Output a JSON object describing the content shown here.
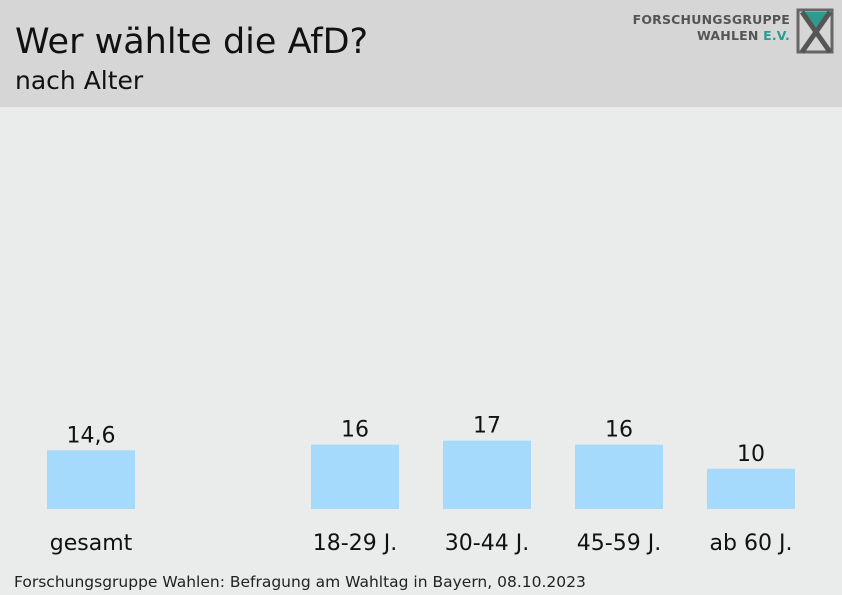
{
  "title": "Wer wählte die AfD?",
  "subtitle": "nach Alter",
  "logo": {
    "line1": "FORSCHUNGSGRUPPE",
    "line2_main": "WAHLEN",
    "line2_suffix": "E.V."
  },
  "source": "Forschungsgruppe Wahlen: Befragung am Wahltag in Bayern, 08.10.2023",
  "colors": {
    "bar": "#a6dafc",
    "header_bg": "#d6d6d6",
    "plot_bg": "#e9eceb",
    "logo_accent": "#2e9b8f"
  },
  "chart_data": {
    "type": "bar",
    "categories": [
      "gesamt",
      "18-29 J.",
      "30-44 J.",
      "45-59 J.",
      "ab 60 J."
    ],
    "values": [
      14.6,
      16,
      17,
      16,
      10
    ],
    "value_labels": [
      "14,6",
      "16",
      "17",
      "16",
      "10"
    ],
    "ylim": [
      0,
      50
    ],
    "grid": false,
    "legend": "none"
  }
}
